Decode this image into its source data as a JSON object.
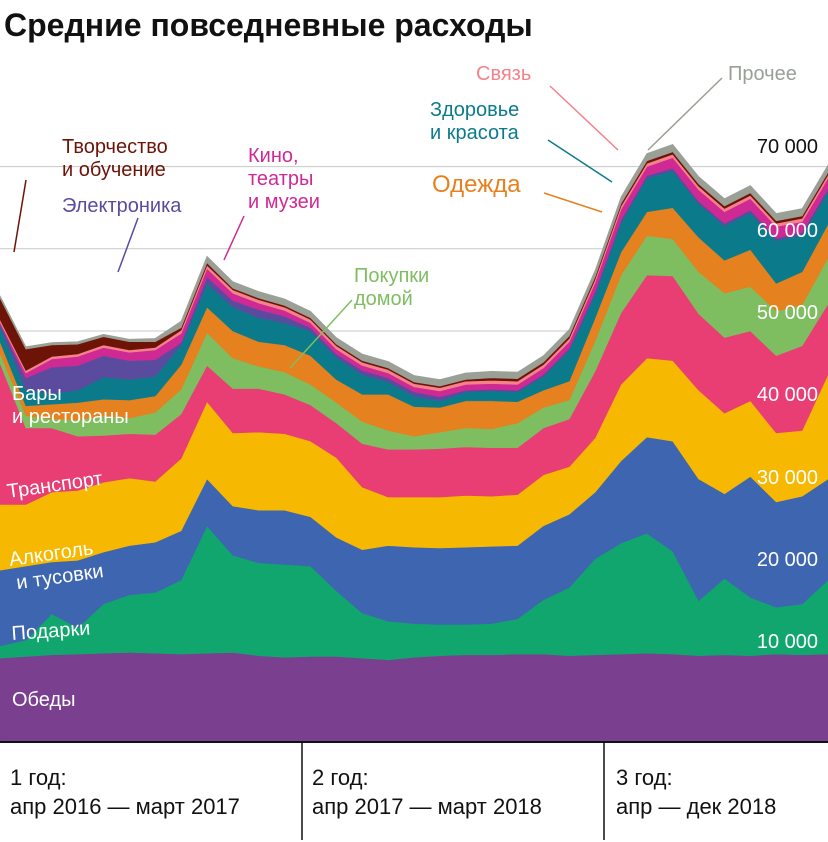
{
  "chart_data": {
    "type": "area",
    "stacked": true,
    "title": "Средние повседневные расходы",
    "ylim": [
      0,
      80000
    ],
    "y_ticks": [
      "10 000",
      "20 000",
      "30 000",
      "40 000",
      "50 000",
      "60 000",
      "70 000"
    ],
    "grid": true,
    "x_labels": [
      "1 год:",
      "апр 2016 — март 2017",
      "2 год:",
      "апр 2017 — март 2018",
      "3 год:",
      "апр — дек 2018"
    ],
    "x": [
      1,
      2,
      3,
      4,
      5,
      6,
      7,
      8,
      9,
      10,
      11,
      12,
      13,
      14,
      15,
      16,
      17,
      18,
      19,
      20,
      21,
      22,
      23,
      24,
      25,
      26,
      27,
      28,
      29,
      30,
      31,
      32,
      33
    ],
    "series": [
      {
        "name": "Обеды",
        "label": "Обеды",
        "color": "#7a3f8f",
        "values": [
          10200,
          10400,
          10600,
          10700,
          10800,
          10900,
          10800,
          10700,
          10800,
          10900,
          10500,
          10300,
          10400,
          10400,
          10200,
          10000,
          10300,
          10500,
          10600,
          10600,
          10700,
          10700,
          10500,
          10600,
          10700,
          10800,
          10700,
          10500,
          10600,
          10500,
          10700,
          10600,
          10700
        ]
      },
      {
        "name": "Подарки",
        "label": "Подарки",
        "color": "#11a66e",
        "values": [
          1500,
          2000,
          5000,
          3200,
          6000,
          7000,
          7400,
          9000,
          15500,
          11800,
          11300,
          11300,
          11000,
          8000,
          5500,
          4700,
          4100,
          3800,
          3700,
          3800,
          4300,
          6600,
          8300,
          11700,
          13500,
          14600,
          12500,
          6700,
          9300,
          7100,
          5700,
          6200,
          9000
        ]
      },
      {
        "name": "Алкоголь и тусовки",
        "label": "Алкоголь и тусовки",
        "color": "#3e65b0",
        "values": [
          9200,
          9000,
          6300,
          8200,
          6300,
          6000,
          6100,
          6000,
          5700,
          6000,
          6400,
          6600,
          6000,
          6500,
          7700,
          9200,
          9300,
          9300,
          9400,
          9400,
          8900,
          9000,
          8900,
          8100,
          10000,
          11700,
          13400,
          14800,
          10300,
          14700,
          12800,
          13100,
          12300
        ]
      },
      {
        "name": "Транспорт",
        "label": "Транспорт",
        "color": "#f6b800",
        "values": [
          8000,
          7500,
          8500,
          8500,
          8500,
          8200,
          7400,
          8800,
          9400,
          8900,
          9500,
          9300,
          9200,
          9700,
          7600,
          5900,
          6100,
          6200,
          6300,
          6100,
          6200,
          6200,
          5800,
          6600,
          9300,
          9600,
          9800,
          10800,
          9800,
          9200,
          8400,
          8000,
          12700
        ]
      },
      {
        "name": "Бары и рестораны",
        "label": "Бары и рестораны",
        "color": "#e83e74",
        "values": [
          17200,
          9300,
          7800,
          6600,
          5700,
          5400,
          5700,
          5400,
          4400,
          5400,
          5300,
          4800,
          4400,
          4200,
          5300,
          5800,
          5800,
          5900,
          5900,
          5900,
          5700,
          5700,
          5800,
          8100,
          8700,
          10100,
          10300,
          9300,
          9200,
          8500,
          9400,
          10300,
          8600
        ]
      },
      {
        "name": "Покупки домой",
        "label": "Покупки домой",
        "color": "#7fbe60",
        "values": [
          1200,
          1500,
          1100,
          2000,
          2400,
          1900,
          2700,
          3000,
          4000,
          3700,
          2700,
          2700,
          2500,
          2500,
          2700,
          2300,
          1600,
          2000,
          2300,
          2300,
          3000,
          2500,
          2300,
          3700,
          4600,
          4800,
          4500,
          5100,
          5400,
          5400,
          5400,
          5000,
          5600
        ]
      },
      {
        "name": "Одежда",
        "label": "Одежда",
        "color": "#e5811e",
        "values": [
          1400,
          1200,
          1800,
          2100,
          2000,
          2200,
          2000,
          3000,
          3100,
          3300,
          3000,
          3300,
          3500,
          2800,
          3300,
          4400,
          3600,
          3000,
          3300,
          3400,
          2600,
          2100,
          2300,
          2800,
          2800,
          2900,
          3800,
          4200,
          4000,
          4500,
          3400,
          4000,
          4100
        ]
      },
      {
        "name": "Здоровье и красота",
        "label": "Здоровье и красота",
        "color": "#0b7b8c",
        "values": [
          1900,
          1900,
          1300,
          1500,
          2700,
          2500,
          2400,
          2400,
          2900,
          2900,
          2900,
          2700,
          3000,
          2700,
          2400,
          1500,
          1300,
          800,
          1100,
          1200,
          1200,
          1700,
          3800,
          2900,
          3600,
          4100,
          4500,
          4100,
          4200,
          4500,
          5200,
          4500,
          4000
        ]
      },
      {
        "name": "Электроника",
        "label": "Электроника",
        "color": "#5b4b9f",
        "values": [
          300,
          1500,
          3200,
          3000,
          2600,
          2300,
          2000,
          300,
          800,
          800,
          1000,
          800,
          400,
          400,
          500,
          500,
          500,
          500,
          200,
          200,
          200,
          200,
          200,
          300,
          300,
          300,
          300,
          300,
          300,
          300,
          300,
          300,
          300
        ]
      },
      {
        "name": "Кино, театры и музеи",
        "label": "Кино, театры и музеи",
        "color": "#cf2a93",
        "values": [
          200,
          600,
          1000,
          1100,
          1000,
          1000,
          1200,
          1100,
          1000,
          900,
          800,
          700,
          600,
          600,
          600,
          600,
          600,
          700,
          700,
          700,
          700,
          800,
          800,
          1100,
          1300,
          1100,
          1300,
          1400,
          1400,
          1400,
          1400,
          1300,
          1300
        ]
      },
      {
        "name": "Связь",
        "label": "Связь",
        "color": "#f5828a",
        "values": [
          300,
          300,
          300,
          300,
          300,
          300,
          300,
          400,
          400,
          400,
          400,
          400,
          400,
          400,
          400,
          400,
          400,
          400,
          400,
          400,
          400,
          400,
          400,
          400,
          400,
          400,
          400,
          400,
          400,
          400,
          400,
          400,
          400
        ]
      },
      {
        "name": "Творчество и обучение",
        "label": "Творчество и обучение",
        "color": "#6e1407",
        "values": [
          2600,
          2600,
          1400,
          1200,
          1000,
          1000,
          700,
          300,
          300,
          200,
          200,
          200,
          200,
          200,
          200,
          200,
          200,
          200,
          200,
          300,
          300,
          300,
          300,
          300,
          300,
          300,
          300,
          300,
          300,
          300,
          300,
          300,
          300
        ]
      },
      {
        "name": "Прочее",
        "label": "Прочее",
        "color": "#9aa096",
        "values": [
          300,
          300,
          300,
          300,
          300,
          300,
          400,
          800,
          800,
          800,
          800,
          800,
          800,
          800,
          800,
          800,
          800,
          800,
          800,
          800,
          800,
          800,
          800,
          800,
          800,
          900,
          900,
          900,
          900,
          900,
          900,
          900,
          900
        ]
      }
    ]
  }
}
